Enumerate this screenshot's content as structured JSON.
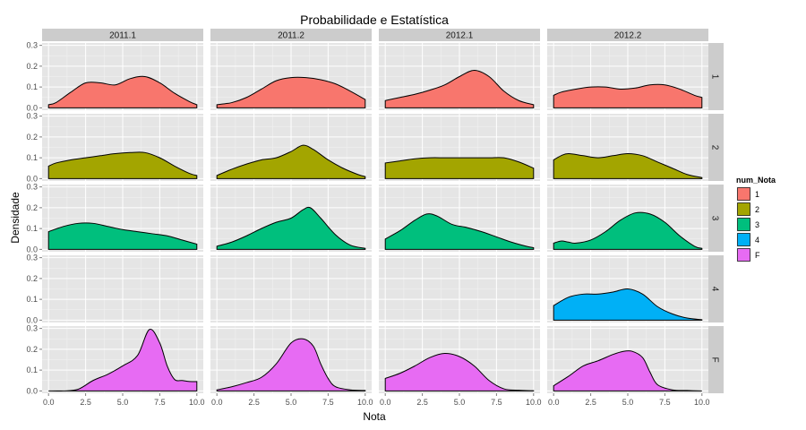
{
  "chart_data": {
    "type": "area",
    "title": "Probabilidade e Estatística",
    "xlabel": "Nota",
    "ylabel": "Densidade",
    "xlim": [
      0,
      10
    ],
    "ylim": [
      0,
      0.3
    ],
    "xticks": [
      "0.0",
      "2.5",
      "5.0",
      "7.5",
      "10.0"
    ],
    "yticks": [
      "0.0",
      "0.1",
      "0.2",
      "0.3"
    ],
    "grid": true,
    "columns": [
      "2011.1",
      "2011.2",
      "2012.1",
      "2012.2"
    ],
    "rows": [
      "1",
      "2",
      "3",
      "4",
      "F"
    ],
    "legend": {
      "title": "num_Nota",
      "position": "right",
      "entries": [
        {
          "label": "1",
          "color": "#F8766D"
        },
        {
          "label": "2",
          "color": "#A3A500"
        },
        {
          "label": "3",
          "color": "#00BF7D"
        },
        {
          "label": "4",
          "color": "#00B0F6"
        },
        {
          "label": "F",
          "color": "#E76BF3"
        }
      ]
    },
    "panels": [
      {
        "row": "1",
        "col": "2011.1",
        "x": [
          0,
          0.5,
          1.5,
          2.5,
          3.5,
          4.5,
          5.5,
          6.5,
          7.5,
          8.5,
          9.5,
          10
        ],
        "y": [
          0.015,
          0.025,
          0.075,
          0.12,
          0.12,
          0.11,
          0.14,
          0.15,
          0.12,
          0.07,
          0.03,
          0.015
        ]
      },
      {
        "row": "1",
        "col": "2011.2",
        "x": [
          0,
          1,
          2,
          3,
          4,
          5,
          6,
          7,
          8,
          9,
          10
        ],
        "y": [
          0.015,
          0.025,
          0.05,
          0.09,
          0.13,
          0.145,
          0.145,
          0.135,
          0.115,
          0.08,
          0.04
        ]
      },
      {
        "row": "1",
        "col": "2012.1",
        "x": [
          0,
          1,
          2,
          3,
          4,
          5,
          6,
          7,
          8,
          9,
          10
        ],
        "y": [
          0.035,
          0.05,
          0.065,
          0.085,
          0.11,
          0.15,
          0.18,
          0.15,
          0.08,
          0.035,
          0.015
        ]
      },
      {
        "row": "1",
        "col": "2012.2",
        "x": [
          0,
          0.5,
          1.5,
          2.5,
          3.5,
          4.5,
          5.5,
          6.5,
          7.5,
          8.5,
          9.5,
          10
        ],
        "y": [
          0.06,
          0.075,
          0.09,
          0.1,
          0.1,
          0.09,
          0.095,
          0.11,
          0.11,
          0.09,
          0.06,
          0.05
        ]
      },
      {
        "row": "2",
        "col": "2011.1",
        "x": [
          0,
          0.5,
          1.5,
          2.5,
          3.5,
          4.5,
          5.5,
          6.5,
          7.5,
          8.5,
          9.5,
          10
        ],
        "y": [
          0.06,
          0.075,
          0.09,
          0.1,
          0.11,
          0.12,
          0.125,
          0.125,
          0.1,
          0.06,
          0.025,
          0.015
        ]
      },
      {
        "row": "2",
        "col": "2011.2",
        "x": [
          0,
          1,
          2,
          3,
          4,
          5,
          5.8,
          6.5,
          7.5,
          8.5,
          9.5,
          10
        ],
        "y": [
          0.015,
          0.045,
          0.07,
          0.09,
          0.1,
          0.13,
          0.16,
          0.14,
          0.09,
          0.05,
          0.02,
          0.01
        ]
      },
      {
        "row": "2",
        "col": "2012.1",
        "x": [
          0,
          1,
          2,
          3,
          4,
          5,
          6,
          7,
          8,
          9,
          10
        ],
        "y": [
          0.075,
          0.085,
          0.095,
          0.1,
          0.1,
          0.1,
          0.1,
          0.1,
          0.1,
          0.08,
          0.05
        ]
      },
      {
        "row": "2",
        "col": "2012.2",
        "x": [
          0,
          0.5,
          1,
          2,
          3,
          4,
          5,
          6,
          7,
          8,
          9,
          10
        ],
        "y": [
          0.09,
          0.11,
          0.12,
          0.11,
          0.1,
          0.11,
          0.12,
          0.11,
          0.08,
          0.05,
          0.02,
          0.005
        ]
      },
      {
        "row": "3",
        "col": "2011.1",
        "x": [
          0,
          1,
          2,
          3,
          4,
          5,
          6,
          7,
          8,
          9,
          10
        ],
        "y": [
          0.085,
          0.11,
          0.125,
          0.125,
          0.11,
          0.095,
          0.085,
          0.075,
          0.065,
          0.045,
          0.025
        ]
      },
      {
        "row": "3",
        "col": "2011.2",
        "x": [
          0,
          1,
          2,
          3,
          4,
          5,
          5.8,
          6.3,
          7,
          8,
          9,
          10
        ],
        "y": [
          0.015,
          0.035,
          0.065,
          0.1,
          0.13,
          0.15,
          0.19,
          0.2,
          0.15,
          0.07,
          0.02,
          0.005
        ]
      },
      {
        "row": "3",
        "col": "2012.1",
        "x": [
          0,
          1,
          2,
          2.8,
          3.5,
          4.5,
          5.5,
          6.5,
          7.5,
          8.5,
          9.5,
          10
        ],
        "y": [
          0.05,
          0.09,
          0.14,
          0.17,
          0.16,
          0.12,
          0.105,
          0.085,
          0.06,
          0.035,
          0.015,
          0.008
        ]
      },
      {
        "row": "3",
        "col": "2012.2",
        "x": [
          0,
          0.5,
          1,
          1.5,
          2.5,
          3.5,
          4.5,
          5.5,
          6.5,
          7.5,
          8.5,
          9.5,
          10
        ],
        "y": [
          0.03,
          0.04,
          0.035,
          0.03,
          0.045,
          0.085,
          0.14,
          0.175,
          0.17,
          0.13,
          0.065,
          0.015,
          0.005
        ]
      },
      {
        "row": "4",
        "col": "2012.2",
        "x": [
          0,
          1,
          2,
          3,
          4,
          5,
          6,
          7,
          8,
          9,
          10
        ],
        "y": [
          0.07,
          0.11,
          0.125,
          0.125,
          0.135,
          0.15,
          0.125,
          0.065,
          0.03,
          0.01,
          0.002
        ]
      },
      {
        "row": "F",
        "col": "2011.1",
        "x": [
          0,
          1,
          2,
          3,
          4,
          5,
          6,
          6.8,
          7.5,
          8,
          8.5,
          9,
          9.5,
          10
        ],
        "y": [
          0,
          0,
          0.008,
          0.05,
          0.08,
          0.12,
          0.17,
          0.295,
          0.23,
          0.12,
          0.055,
          0.05,
          0.045,
          0.045
        ]
      },
      {
        "row": "F",
        "col": "2011.2",
        "x": [
          0,
          1,
          2,
          3,
          4,
          5,
          5.8,
          6.5,
          7,
          7.5,
          8,
          9,
          10
        ],
        "y": [
          0.005,
          0.02,
          0.04,
          0.065,
          0.13,
          0.23,
          0.25,
          0.215,
          0.13,
          0.06,
          0.02,
          0.005,
          0.002
        ]
      },
      {
        "row": "F",
        "col": "2012.1",
        "x": [
          0,
          1,
          2,
          3,
          4,
          5,
          6,
          7,
          8,
          9,
          10
        ],
        "y": [
          0.06,
          0.085,
          0.12,
          0.16,
          0.18,
          0.165,
          0.12,
          0.05,
          0.01,
          0.003,
          0.001
        ]
      },
      {
        "row": "F",
        "col": "2012.2",
        "x": [
          0,
          1,
          2,
          3,
          4,
          4.7,
          5.3,
          6,
          6.5,
          7,
          8,
          9,
          10
        ],
        "y": [
          0.025,
          0.07,
          0.12,
          0.145,
          0.175,
          0.19,
          0.19,
          0.16,
          0.09,
          0.03,
          0.005,
          0.002,
          0
        ]
      }
    ]
  }
}
